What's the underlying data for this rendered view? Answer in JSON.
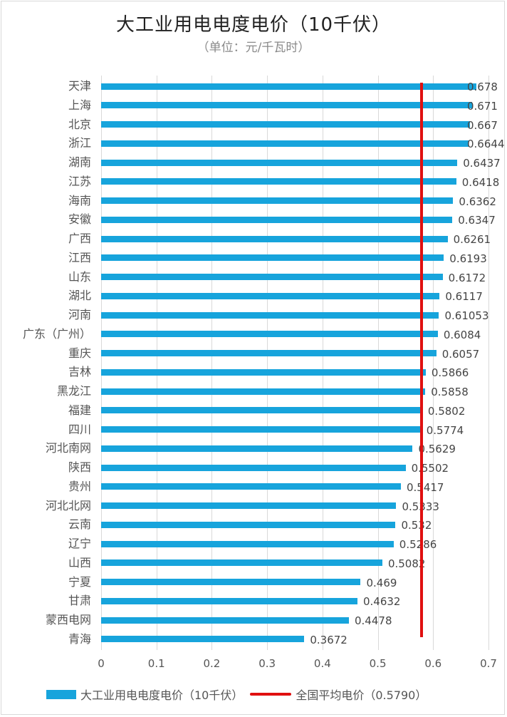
{
  "chart_data": {
    "type": "bar",
    "orientation": "horizontal",
    "title": "大工业用电电度电价（10千伏）",
    "subtitle": "（单位：元/千瓦时）",
    "xlabel": "",
    "ylabel": "",
    "xlim": [
      0,
      0.7
    ],
    "x_ticks": [
      "0",
      "0.1",
      "0.2",
      "0.3",
      "0.4",
      "0.5",
      "0.6",
      "0.7"
    ],
    "grid": true,
    "legend_position": "bottom",
    "categories": [
      "天津",
      "上海",
      "北京",
      "浙江",
      "湖南",
      "江苏",
      "海南",
      "安徽",
      "广西",
      "江西",
      "山东",
      "湖北",
      "河南",
      "广东（广州）",
      "重庆",
      "吉林",
      "黑龙江",
      "福建",
      "四川",
      "河北南网",
      "陕西",
      "贵州",
      "河北北网",
      "云南",
      "辽宁",
      "山西",
      "宁夏",
      "甘肃",
      "蒙西电网",
      "青海"
    ],
    "series": [
      {
        "name": "大工业用电电度电价（10千伏）",
        "color": "#17a4dc",
        "values": [
          0.678,
          0.671,
          0.667,
          0.6644,
          0.6437,
          0.6418,
          0.6362,
          0.6347,
          0.6261,
          0.6193,
          0.6172,
          0.6117,
          0.61053,
          0.6084,
          0.6057,
          0.5866,
          0.5858,
          0.5802,
          0.5774,
          0.5629,
          0.5502,
          0.5417,
          0.5333,
          0.532,
          0.5286,
          0.5082,
          0.469,
          0.4632,
          0.4478,
          0.3672
        ],
        "labels": [
          "0.678",
          "0.671",
          "0.667",
          "0.6644",
          "0.6437",
          "0.6418",
          "0.6362",
          "0.6347",
          "0.6261",
          "0.6193",
          "0.6172",
          "0.6117",
          "0.61053",
          "0.6084",
          "0.6057",
          "0.5866",
          "0.5858",
          "0.5802",
          "0.5774",
          "0.5629",
          "0.5502",
          "0.5417",
          "0.5333",
          "0.532",
          "0.5286",
          "0.5082",
          "0.469",
          "0.4632",
          "0.4478",
          "0.3672"
        ]
      }
    ],
    "reference_line": {
      "name": "全国平均电价（0.5790）",
      "value": 0.579,
      "color": "#e01010"
    }
  },
  "legend": {
    "bar_label": "大工业用电电度电价（10千伏）",
    "line_label": "全国平均电价（0.5790）"
  }
}
